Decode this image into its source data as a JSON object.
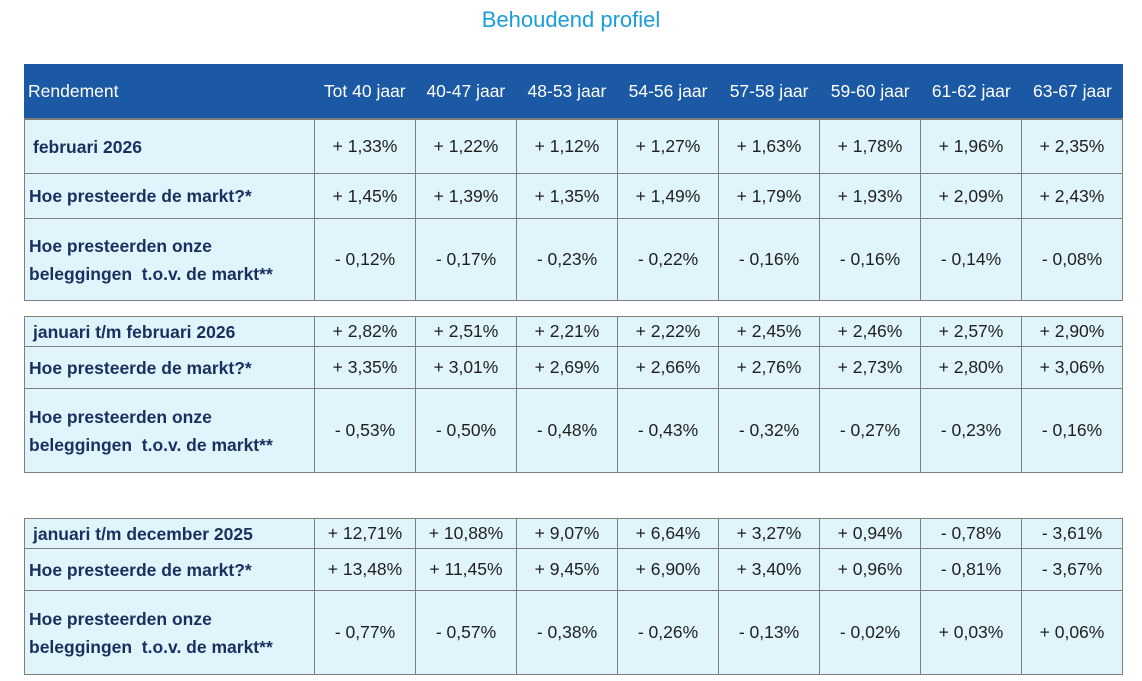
{
  "title": "Behoudend profiel",
  "header": {
    "label": "Rendement",
    "columns": [
      "Tot 40 jaar",
      "40-47 jaar",
      "48-53 jaar",
      "54-56 jaar",
      "57-58 jaar",
      "59-60 jaar",
      "61-62 jaar",
      "63-67 jaar"
    ]
  },
  "blocks": [
    {
      "rows": [
        {
          "label": "februari 2026",
          "values": [
            "+ 1,33%",
            "+ 1,22%",
            "+ 1,12%",
            "+ 1,27%",
            "+ 1,63%",
            "+ 1,78%",
            "+ 1,96%",
            "+ 2,35%"
          ]
        },
        {
          "label": "Hoe presteerde de markt?*",
          "values": [
            "+ 1,45%",
            "+ 1,39%",
            "+ 1,35%",
            "+ 1,49%",
            "+ 1,79%",
            "+ 1,93%",
            "+ 2,09%",
            "+ 2,43%"
          ]
        },
        {
          "label_line1": "Hoe presteerden onze",
          "label_line2": "beleggingen  t.o.v. de markt**",
          "values": [
            "- 0,12%",
            "- 0,17%",
            "- 0,23%",
            "- 0,22%",
            "- 0,16%",
            "- 0,16%",
            "- 0,14%",
            "- 0,08%"
          ]
        }
      ]
    },
    {
      "rows": [
        {
          "label": "januari t/m februari 2026",
          "values": [
            "+ 2,82%",
            "+ 2,51%",
            "+ 2,21%",
            "+ 2,22%",
            "+ 2,45%",
            "+ 2,46%",
            "+ 2,57%",
            "+ 2,90%"
          ]
        },
        {
          "label": "Hoe presteerde de markt?*",
          "values": [
            "+ 3,35%",
            "+ 3,01%",
            "+ 2,69%",
            "+ 2,66%",
            "+ 2,76%",
            "+ 2,73%",
            "+ 2,80%",
            "+ 3,06%"
          ]
        },
        {
          "label_line1": "Hoe presteerden onze",
          "label_line2": "beleggingen  t.o.v. de markt**",
          "values": [
            "- 0,53%",
            "- 0,50%",
            "- 0,48%",
            "- 0,43%",
            "- 0,32%",
            "- 0,27%",
            "- 0,23%",
            "- 0,16%"
          ]
        }
      ]
    },
    {
      "rows": [
        {
          "label": "januari t/m december 2025",
          "values": [
            "+ 12,71%",
            "+ 10,88%",
            "+ 9,07%",
            "+ 6,64%",
            "+ 3,27%",
            "+ 0,94%",
            "- 0,78%",
            "- 3,61%"
          ]
        },
        {
          "label": "Hoe presteerde de markt?*",
          "values": [
            "+ 13,48%",
            "+ 11,45%",
            "+ 9,45%",
            "+ 6,90%",
            "+ 3,40%",
            "+ 0,96%",
            "- 0,81%",
            "- 3,67%"
          ]
        },
        {
          "label_line1": "Hoe presteerden onze",
          "label_line2": "beleggingen  t.o.v. de markt**",
          "values": [
            "- 0,77%",
            "- 0,57%",
            "- 0,38%",
            "- 0,26%",
            "- 0,13%",
            "- 0,02%",
            "+ 0,03%",
            "+ 0,06%"
          ]
        }
      ]
    }
  ]
}
